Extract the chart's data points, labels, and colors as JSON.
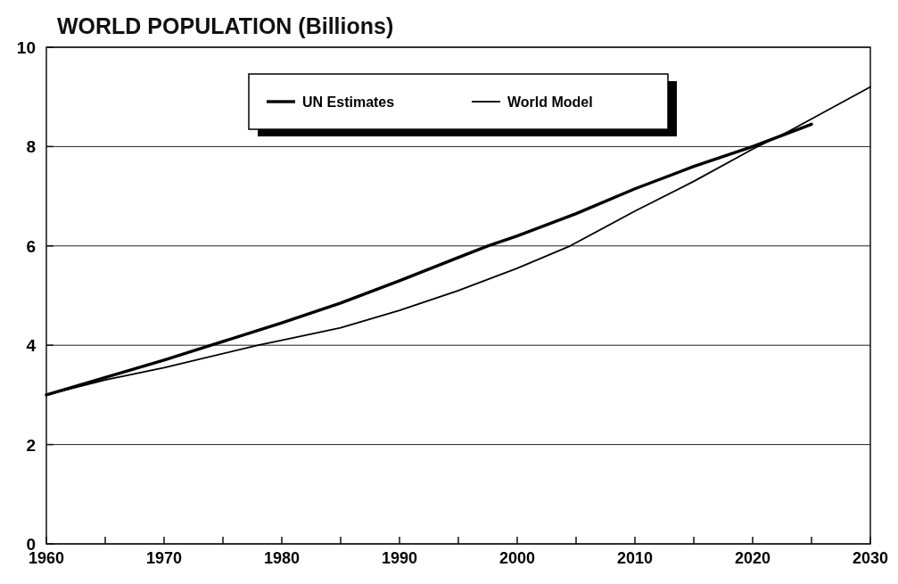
{
  "chart_data": {
    "type": "line",
    "title": "WORLD POPULATION (Billions)",
    "xlim": [
      1960,
      2030
    ],
    "xticks": [
      1960,
      {
        "value": 1965,
        "label": null
      },
      1970,
      {
        "value": 1975,
        "label": null
      },
      1980,
      {
        "value": 1985,
        "label": null
      },
      1990,
      {
        "value": 1995,
        "label": null
      },
      2000,
      {
        "value": 2005,
        "label": null
      },
      2010,
      {
        "value": 2015,
        "label": null
      },
      2020,
      {
        "value": 2025,
        "label": null
      },
      2030
    ],
    "ylim": [
      0,
      10
    ],
    "yticks": [
      0,
      2,
      4,
      6,
      8,
      10
    ],
    "grid": "y",
    "legend": "top",
    "series": [
      {
        "name": "UN Estimates",
        "color": "#000000",
        "x": [
          1960,
          1965,
          1970,
          1974,
          1980,
          1985,
          1990,
          1997.5,
          2000,
          2005,
          2010,
          2015,
          2020,
          2025
        ],
        "values": [
          3.0,
          3.35,
          3.7,
          4.0,
          4.45,
          4.85,
          5.3,
          6.0,
          6.2,
          6.65,
          7.15,
          7.6,
          8.0,
          8.45
        ]
      },
      {
        "name": "World Model",
        "color": "#000000",
        "x": [
          1960,
          1965,
          1970,
          1978,
          1980,
          1985,
          1990,
          1995,
          2000,
          2004.5,
          2010,
          2015,
          2020,
          2023,
          2030
        ],
        "values": [
          3.0,
          3.3,
          3.55,
          4.0,
          4.1,
          4.35,
          4.7,
          5.1,
          5.55,
          6.0,
          6.7,
          7.3,
          7.95,
          8.3,
          9.2
        ]
      }
    ]
  }
}
